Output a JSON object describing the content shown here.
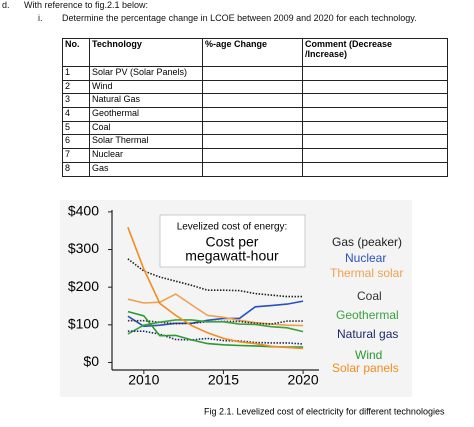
{
  "header": {
    "item": "d.",
    "text": "With reference to fig.2.1 below:"
  },
  "question": {
    "number": "i.",
    "text": "Determine the percentage change in LCOE between 2009 and 2020 for each technology."
  },
  "table": {
    "columns": [
      "No.",
      "Technology",
      "%-age Change",
      "Comment (Decrease /Increase)"
    ],
    "rows": [
      [
        "1",
        "Solar PV (Solar Panels)"
      ],
      [
        "2",
        "Wind"
      ],
      [
        "3",
        "Natural Gas"
      ],
      [
        "4",
        "Geothermal"
      ],
      [
        "5",
        "Coal"
      ],
      [
        "6",
        "Solar Thermal"
      ],
      [
        "7",
        "Nuclear"
      ],
      [
        "8",
        "Gas"
      ]
    ]
  },
  "chart_data": {
    "type": "line",
    "title": "Levelized cost of energy:",
    "subtitle": [
      "Cost per",
      "megawatt-hour"
    ],
    "x": [
      2009,
      2010,
      2011,
      2012,
      2013,
      2014,
      2015,
      2016,
      2017,
      2018,
      2019,
      2020
    ],
    "xlim": [
      2008,
      2021
    ],
    "xticks": [
      2010,
      2015,
      2020
    ],
    "ylim": [
      -20,
      405
    ],
    "yticks": [
      {
        "value": 0,
        "label": "$0"
      },
      {
        "value": 100,
        "label": "$100"
      },
      {
        "value": 200,
        "label": "$200"
      },
      {
        "value": 300,
        "label": "$300"
      },
      {
        "value": 400,
        "label": "$400"
      }
    ],
    "series": [
      {
        "name": "Gas (peaker)",
        "color": "#222222",
        "dash": true,
        "values": [
          275,
          243,
          227,
          216,
          205,
          192,
          192,
          191,
          183,
          179,
          175,
          175
        ]
      },
      {
        "name": "Nuclear",
        "color": "#2a52be",
        "dash": false,
        "values": [
          123,
          96,
          99,
          104,
          104,
          112,
          117,
          117,
          148,
          151,
          155,
          163
        ]
      },
      {
        "name": "Thermal solar",
        "color": "#f0a050",
        "dash": false,
        "values": [
          168,
          158,
          160,
          182,
          153,
          125,
          120,
          112,
          106,
          102,
          99,
          98
        ]
      },
      {
        "name": "Coal",
        "color": "#333333",
        "dash": true,
        "values": [
          111,
          111,
          107,
          103,
          104,
          108,
          109,
          109,
          104,
          102,
          110,
          110
        ]
      },
      {
        "name": "Geothermal",
        "color": "#3aa33a",
        "dash": false,
        "values": [
          76,
          99,
          107,
          113,
          113,
          108,
          108,
          102,
          101,
          95,
          92,
          82
        ]
      },
      {
        "name": "Natural gas",
        "color": "#1a2a6a",
        "dash": true,
        "values": [
          83,
          83,
          75,
          61,
          60,
          64,
          58,
          57,
          53,
          52,
          52,
          49
        ]
      },
      {
        "name": "Wind",
        "color": "#2c9a2c",
        "dash": false,
        "values": [
          135,
          124,
          71,
          72,
          60,
          50,
          47,
          45,
          44,
          42,
          41,
          41
        ]
      },
      {
        "name": "Solar panels",
        "color": "#f28c1e",
        "dash": false,
        "values": [
          359,
          248,
          157,
          125,
          98,
          79,
          64,
          55,
          50,
          43,
          40,
          37
        ]
      }
    ]
  },
  "caption": "Fig 2.1. Levelized cost of electricity for different technologies"
}
